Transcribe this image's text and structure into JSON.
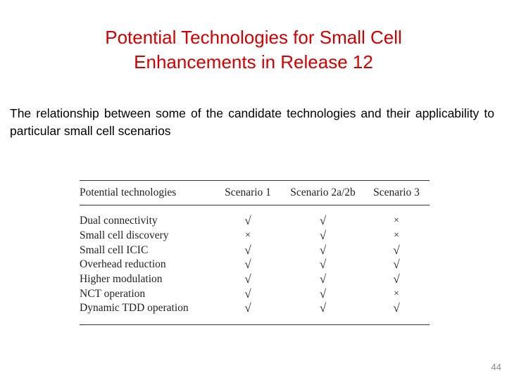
{
  "title": {
    "line1": "Potential Technologies for Small Cell",
    "line2": "Enhancements in Release 12"
  },
  "intro": "The relationship between some of the candidate technologies and their applicability to particular small cell scenarios",
  "table": {
    "headers": [
      "Potential technologies",
      "Scenario 1",
      "Scenario 2a/2b",
      "Scenario 3"
    ],
    "rows": [
      {
        "tech": "Dual connectivity",
        "s1": "√",
        "s2": "√",
        "s3": "×"
      },
      {
        "tech": "Small cell discovery",
        "s1": "×",
        "s2": "√",
        "s3": "×"
      },
      {
        "tech": "Small cell ICIC",
        "s1": "√",
        "s2": "√",
        "s3": "√"
      },
      {
        "tech": "Overhead reduction",
        "s1": "√",
        "s2": "√",
        "s3": "√"
      },
      {
        "tech": "Higher modulation",
        "s1": "√",
        "s2": "√",
        "s3": "√"
      },
      {
        "tech": "NCT operation",
        "s1": "√",
        "s2": "√",
        "s3": "×"
      },
      {
        "tech": "Dynamic TDD operation",
        "s1": "√",
        "s2": "√",
        "s3": "√"
      }
    ]
  },
  "page_number": "44"
}
